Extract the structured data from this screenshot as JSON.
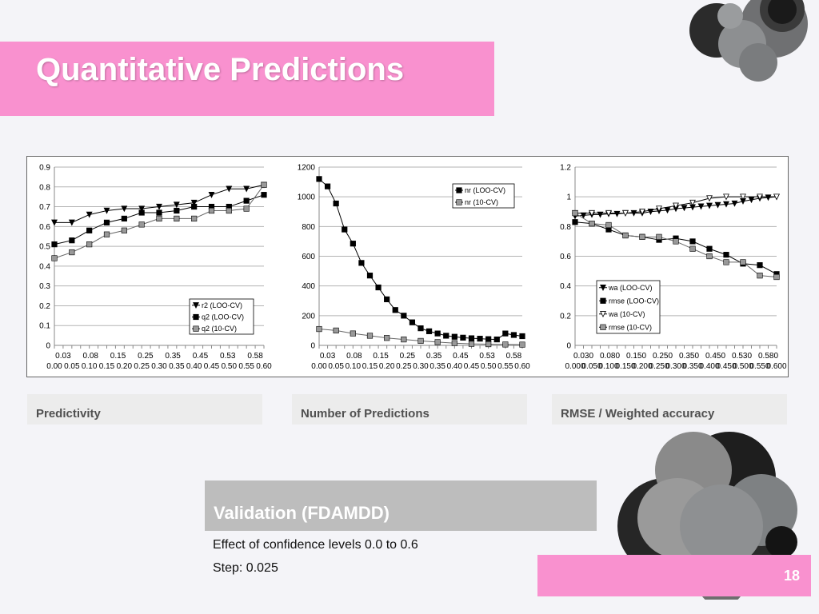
{
  "slide": {
    "title": "Quantitative Predictions",
    "captions": [
      "Predictivity",
      "Number of Predictions",
      "RMSE / Weighted accuracy"
    ],
    "validation_title": "Validation (FDAMDD)",
    "notes": [
      "Effect of confidence levels 0.0 to 0.6",
      "Step: 0.025"
    ],
    "page_number": "18",
    "colors": {
      "accent_pink": "#f991cf",
      "caption_bg": "#ececec",
      "validation_bg": "#bdbdbd",
      "molecule": "gray/black spheres"
    }
  },
  "chart_data": [
    {
      "type": "line",
      "x": [
        0,
        0.025,
        0.05,
        0.075,
        0.1,
        0.125,
        0.15,
        0.175,
        0.2,
        0.225,
        0.25,
        0.275,
        0.3,
        0.325,
        0.35,
        0.375,
        0.4,
        0.425,
        0.45,
        0.475,
        0.5,
        0.525,
        0.55,
        0.575,
        0.6
      ],
      "xtick_labels_bottom": [
        "0.00",
        "0.05",
        "0.10",
        "0.15",
        "0.20",
        "0.25",
        "0.30",
        "0.35",
        "0.40",
        "0.45",
        "0.50",
        "0.55",
        "0.60"
      ],
      "xtick_labels_top": [
        "0.03",
        "0.08",
        "0.15",
        "0.25",
        "0.35",
        "0.45",
        "0.53",
        "0.58"
      ],
      "ylim": [
        0,
        0.9
      ],
      "yticks": [
        "0",
        "0.1",
        "0.2",
        "0.3",
        "0.4",
        "0.5",
        "0.6",
        "0.7",
        "0.8",
        "0.9"
      ],
      "grid": true,
      "legend_position": "bottom-right",
      "series": [
        {
          "name": "r2 (LOO-CV)",
          "marker": "triangle-down",
          "color": "#000000",
          "x": [
            0,
            0.05,
            0.1,
            0.15,
            0.2,
            0.25,
            0.3,
            0.35,
            0.4,
            0.45,
            0.5,
            0.55,
            0.6
          ],
          "values": [
            0.62,
            0.62,
            0.66,
            0.68,
            0.69,
            0.69,
            0.7,
            0.71,
            0.72,
            0.76,
            0.79,
            0.79,
            0.81
          ]
        },
        {
          "name": "q2 (LOO-CV)",
          "marker": "square",
          "color": "#000000",
          "x": [
            0,
            0.05,
            0.1,
            0.15,
            0.2,
            0.25,
            0.3,
            0.35,
            0.4,
            0.45,
            0.5,
            0.55,
            0.6
          ],
          "values": [
            0.51,
            0.53,
            0.58,
            0.62,
            0.64,
            0.67,
            0.67,
            0.68,
            0.7,
            0.7,
            0.7,
            0.73,
            0.76
          ]
        },
        {
          "name": "q2 (10-CV)",
          "marker": "square",
          "color": "#999999",
          "x": [
            0,
            0.05,
            0.1,
            0.15,
            0.2,
            0.25,
            0.3,
            0.35,
            0.4,
            0.45,
            0.5,
            0.55,
            0.6
          ],
          "values": [
            0.44,
            0.47,
            0.51,
            0.56,
            0.58,
            0.61,
            0.64,
            0.64,
            0.64,
            0.68,
            0.68,
            0.69,
            0.81
          ]
        }
      ]
    },
    {
      "type": "line",
      "xtick_labels_bottom": [
        "0.00",
        "0.05",
        "0.10",
        "0.15",
        "0.20",
        "0.25",
        "0.30",
        "0.35",
        "0.40",
        "0.45",
        "0.50",
        "0.55",
        "0.60"
      ],
      "xtick_labels_top": [
        "0.03",
        "0.08",
        "0.15",
        "0.25",
        "0.35",
        "0.45",
        "0.53",
        "0.58"
      ],
      "ylim": [
        0,
        1200
      ],
      "yticks": [
        "0",
        "200",
        "400",
        "600",
        "800",
        "1000",
        "1200"
      ],
      "grid": true,
      "legend_position": "top-right",
      "series": [
        {
          "name": "nr (LOO-CV)",
          "marker": "square",
          "color": "#000000",
          "x": [
            0,
            0.025,
            0.05,
            0.075,
            0.1,
            0.125,
            0.15,
            0.175,
            0.2,
            0.225,
            0.25,
            0.275,
            0.3,
            0.325,
            0.35,
            0.375,
            0.4,
            0.425,
            0.45,
            0.475,
            0.5,
            0.525,
            0.55,
            0.575,
            0.6
          ],
          "values": [
            1120,
            1070,
            955,
            780,
            685,
            555,
            470,
            390,
            310,
            238,
            200,
            155,
            115,
            95,
            80,
            65,
            58,
            52,
            48,
            45,
            42,
            40,
            80,
            70,
            62
          ]
        },
        {
          "name": "nr (10-CV)",
          "marker": "square",
          "color": "#999999",
          "x": [
            0,
            0.05,
            0.1,
            0.15,
            0.2,
            0.25,
            0.3,
            0.35,
            0.4,
            0.45,
            0.5,
            0.55,
            0.6
          ],
          "values": [
            110,
            100,
            80,
            65,
            50,
            40,
            30,
            22,
            15,
            10,
            8,
            6,
            5
          ]
        }
      ]
    },
    {
      "type": "line",
      "xtick_labels_bottom": [
        "0.000",
        "0.050",
        "0.100",
        "0.150",
        "0.200",
        "0.250",
        "0.300",
        "0.350",
        "0.400",
        "0.450",
        "0.500",
        "0.550",
        "0.600"
      ],
      "xtick_labels_top": [
        "0.030",
        "0.080",
        "0.150",
        "0.250",
        "0.350",
        "0.450",
        "0.530",
        "0.580"
      ],
      "ylim": [
        0,
        1.2
      ],
      "yticks": [
        "0",
        "0.2",
        "0.4",
        "0.6",
        "0.8",
        "1",
        "1.2"
      ],
      "grid": true,
      "legend_position": "bottom-right",
      "series": [
        {
          "name": "wa (LOO-CV)",
          "marker": "triangle-down",
          "color": "#000000",
          "x": [
            0,
            0.025,
            0.05,
            0.075,
            0.1,
            0.125,
            0.15,
            0.175,
            0.2,
            0.225,
            0.25,
            0.275,
            0.3,
            0.325,
            0.35,
            0.375,
            0.4,
            0.425,
            0.45,
            0.475,
            0.5,
            0.525,
            0.55,
            0.575,
            0.6
          ],
          "values": [
            0.87,
            0.875,
            0.88,
            0.88,
            0.885,
            0.885,
            0.89,
            0.89,
            0.89,
            0.9,
            0.905,
            0.91,
            0.92,
            0.925,
            0.93,
            0.935,
            0.94,
            0.945,
            0.95,
            0.955,
            0.97,
            0.98,
            0.99,
            0.995,
            1.0
          ]
        },
        {
          "name": "rmse (LOO-CV)",
          "marker": "square",
          "color": "#000000",
          "x": [
            0,
            0.05,
            0.1,
            0.15,
            0.2,
            0.25,
            0.3,
            0.35,
            0.4,
            0.45,
            0.5,
            0.55,
            0.6
          ],
          "values": [
            0.83,
            0.82,
            0.78,
            0.74,
            0.73,
            0.71,
            0.72,
            0.7,
            0.65,
            0.61,
            0.55,
            0.54,
            0.48
          ]
        },
        {
          "name": "wa (10-CV)",
          "marker": "triangle-down-open",
          "color": "#000000",
          "x": [
            0,
            0.05,
            0.1,
            0.15,
            0.2,
            0.25,
            0.3,
            0.35,
            0.4,
            0.45,
            0.5,
            0.55,
            0.6
          ],
          "values": [
            0.89,
            0.89,
            0.89,
            0.89,
            0.9,
            0.92,
            0.94,
            0.96,
            0.99,
            1.0,
            1.0,
            1.0,
            1.0
          ]
        },
        {
          "name": "rmse (10-CV)",
          "marker": "square",
          "color": "#999999",
          "x": [
            0,
            0.05,
            0.1,
            0.15,
            0.2,
            0.25,
            0.3,
            0.35,
            0.4,
            0.45,
            0.5,
            0.55,
            0.6
          ],
          "values": [
            0.89,
            0.82,
            0.81,
            0.74,
            0.73,
            0.73,
            0.7,
            0.65,
            0.6,
            0.56,
            0.56,
            0.47,
            0.46
          ]
        }
      ]
    }
  ]
}
